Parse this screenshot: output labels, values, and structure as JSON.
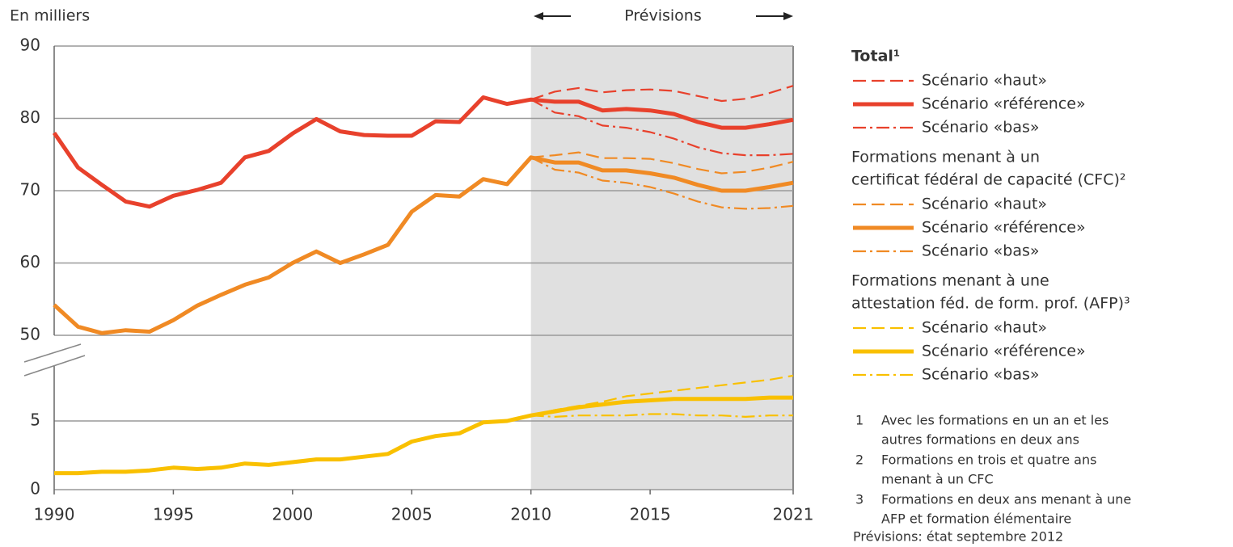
{
  "chart_data": [
    {
      "type": "line",
      "ylabel": "En milliers",
      "xlim": [
        1990,
        2021
      ],
      "ylim": [
        50,
        90
      ],
      "yticks": [
        50,
        60,
        70,
        80,
        90
      ],
      "grid": true,
      "groups": [
        {
          "name": [
            "Total¹"
          ],
          "series": [
            {
              "name": "Scénario «haut»",
              "color": "#e8412c",
              "dash": "dashed",
              "x": [
                2010,
                2011,
                2012,
                2013,
                2014,
                2015,
                2016,
                2017,
                2018,
                2019,
                2020,
                2021
              ],
              "values": [
                82.6,
                83.7,
                84.2,
                83.6,
                83.9,
                84.0,
                83.8,
                83.1,
                82.4,
                82.7,
                83.5,
                84.5
              ]
            },
            {
              "name": "Scénario «référence»",
              "color": "#e8412c",
              "dash": "solid",
              "x": [
                1990,
                1991,
                1992,
                1993,
                1994,
                1995,
                1996,
                1997,
                1998,
                1999,
                2000,
                2001,
                2002,
                2003,
                2004,
                2005,
                2006,
                2007,
                2008,
                2009,
                2010,
                2011,
                2012,
                2013,
                2014,
                2015,
                2016,
                2017,
                2018,
                2019,
                2020,
                2021
              ],
              "values": [
                78.0,
                73.2,
                70.8,
                68.5,
                67.8,
                69.3,
                70.1,
                71.1,
                74.6,
                75.5,
                77.9,
                79.9,
                78.2,
                77.7,
                77.6,
                77.6,
                79.6,
                79.5,
                82.9,
                82.0,
                82.6,
                82.3,
                82.3,
                81.1,
                81.3,
                81.1,
                80.6,
                79.5,
                78.7,
                78.7,
                79.2,
                79.8
              ]
            },
            {
              "name": "Scénario «bas»",
              "color": "#e8412c",
              "dash": "dashdot",
              "x": [
                2010,
                2011,
                2012,
                2013,
                2014,
                2015,
                2016,
                2017,
                2018,
                2019,
                2020,
                2021
              ],
              "values": [
                82.6,
                80.8,
                80.3,
                79.0,
                78.7,
                78.1,
                77.2,
                76.0,
                75.2,
                74.9,
                74.9,
                75.1
              ]
            }
          ]
        },
        {
          "name": [
            "Formations menant à un",
            "certificat fédéral de capacité (CFC)²"
          ],
          "series": [
            {
              "name": "Scénario «haut»",
              "color": "#f08a24",
              "dash": "dashed",
              "x": [
                2010,
                2011,
                2012,
                2013,
                2014,
                2015,
                2016,
                2017,
                2018,
                2019,
                2020,
                2021
              ],
              "values": [
                74.6,
                74.9,
                75.3,
                74.5,
                74.5,
                74.4,
                73.8,
                73.0,
                72.4,
                72.6,
                73.2,
                74.0
              ]
            },
            {
              "name": "Scénario «référence»",
              "color": "#f08a24",
              "dash": "solid",
              "x": [
                1990,
                1991,
                1992,
                1993,
                1994,
                1995,
                1996,
                1997,
                1998,
                1999,
                2000,
                2001,
                2002,
                2003,
                2004,
                2005,
                2006,
                2007,
                2008,
                2009,
                2010,
                2011,
                2012,
                2013,
                2014,
                2015,
                2016,
                2017,
                2018,
                2019,
                2020,
                2021
              ],
              "values": [
                54.2,
                51.2,
                50.3,
                50.7,
                50.5,
                52.1,
                54.1,
                55.6,
                57.0,
                58.0,
                60.0,
                61.6,
                60.0,
                61.2,
                62.5,
                67.1,
                69.4,
                69.2,
                71.6,
                70.9,
                74.6,
                73.9,
                73.9,
                72.8,
                72.8,
                72.4,
                71.8,
                70.8,
                70.0,
                70.0,
                70.5,
                71.1
              ]
            },
            {
              "name": "Scénario «bas»",
              "color": "#f08a24",
              "dash": "dashdot",
              "x": [
                2010,
                2011,
                2012,
                2013,
                2014,
                2015,
                2016,
                2017,
                2018,
                2019,
                2020,
                2021
              ],
              "values": [
                74.6,
                72.9,
                72.5,
                71.4,
                71.1,
                70.5,
                69.6,
                68.5,
                67.7,
                67.5,
                67.6,
                67.9
              ]
            }
          ]
        }
      ]
    },
    {
      "type": "line",
      "xlim": [
        1990,
        2021
      ],
      "xticks": [
        1990,
        1995,
        2000,
        2005,
        2010,
        2015,
        2021
      ],
      "ylim": [
        0,
        9
      ],
      "yticks": [
        0,
        5
      ],
      "grid": true,
      "groups": [
        {
          "name": [
            "Formations menant à une",
            "attestation féd. de form. prof. (AFP)³"
          ],
          "series": [
            {
              "name": "Scénario «haut»",
              "color": "#f9c000",
              "dash": "dashed",
              "x": [
                2010,
                2011,
                2012,
                2013,
                2014,
                2015,
                2016,
                2017,
                2018,
                2019,
                2020,
                2021
              ],
              "values": [
                5.4,
                5.8,
                6.1,
                6.4,
                6.8,
                7.0,
                7.2,
                7.4,
                7.6,
                7.8,
                8.0,
                8.3
              ]
            },
            {
              "name": "Scénario «référence»",
              "color": "#f9c000",
              "dash": "solid",
              "x": [
                1990,
                1991,
                1992,
                1993,
                1994,
                1995,
                1996,
                1997,
                1998,
                1999,
                2000,
                2001,
                2002,
                2003,
                2004,
                2005,
                2006,
                2007,
                2008,
                2009,
                2010,
                2011,
                2012,
                2013,
                2014,
                2015,
                2016,
                2017,
                2018,
                2019,
                2020,
                2021
              ],
              "values": [
                1.2,
                1.2,
                1.3,
                1.3,
                1.4,
                1.6,
                1.5,
                1.6,
                1.9,
                1.8,
                2.0,
                2.2,
                2.2,
                2.4,
                2.6,
                3.5,
                3.9,
                4.1,
                4.9,
                5.0,
                5.4,
                5.7,
                6.0,
                6.2,
                6.4,
                6.5,
                6.6,
                6.6,
                6.6,
                6.6,
                6.7,
                6.7
              ]
            },
            {
              "name": "Scénario «bas»",
              "color": "#f9c000",
              "dash": "dashdot",
              "x": [
                2010,
                2011,
                2012,
                2013,
                2014,
                2015,
                2016,
                2017,
                2018,
                2019,
                2020,
                2021
              ],
              "values": [
                5.4,
                5.3,
                5.4,
                5.4,
                5.4,
                5.5,
                5.5,
                5.4,
                5.4,
                5.3,
                5.4,
                5.4
              ]
            }
          ]
        }
      ]
    }
  ],
  "forecast": {
    "label": "Prévisions",
    "x": [
      2010,
      2021
    ]
  },
  "notes": [
    {
      "mark": "1",
      "lines": [
        "Avec les formations en un an et les",
        "autres formations en deux ans"
      ]
    },
    {
      "mark": "2",
      "lines": [
        "Formations en trois et quatre ans",
        "menant à un CFC"
      ]
    },
    {
      "mark": "3",
      "lines": [
        "Formations en deux ans menant à une",
        "AFP et formation élémentaire"
      ]
    }
  ],
  "source": "Prévisions: état septembre 2012"
}
